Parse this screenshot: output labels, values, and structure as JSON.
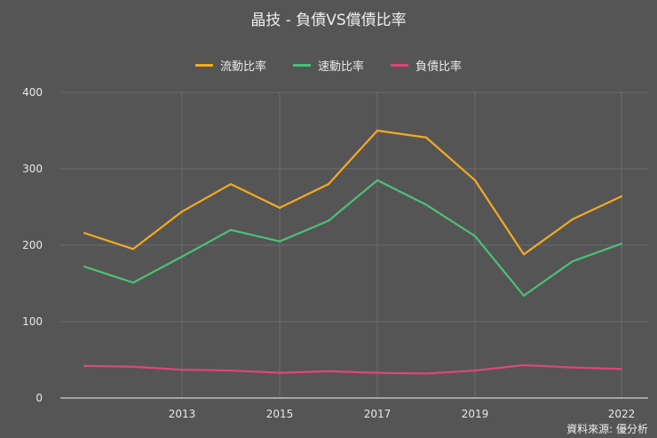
{
  "chart_data": {
    "type": "line",
    "title": "晶技 - 負債VS償債比率",
    "xlabel": "",
    "ylabel": "",
    "x": [
      2011,
      2012,
      2013,
      2014,
      2015,
      2016,
      2017,
      2018,
      2019,
      2020,
      2021,
      2022
    ],
    "x_tick_labels": [
      "2013",
      "2015",
      "2017",
      "2019",
      "2022"
    ],
    "x_tick_values": [
      2013,
      2015,
      2017,
      2019,
      2022
    ],
    "ylim": [
      0,
      400
    ],
    "y_tick_labels": [
      "0",
      "100",
      "200",
      "300",
      "400"
    ],
    "y_tick_values": [
      0,
      100,
      200,
      300,
      400
    ],
    "grid": true,
    "legend_position": "top",
    "series": [
      {
        "name": "流動比率",
        "color": "#f4a922",
        "values": [
          216,
          195,
          244,
          280,
          249,
          280,
          350,
          341,
          285,
          188,
          234,
          264
        ]
      },
      {
        "name": "速動比率",
        "color": "#4cbf7a",
        "values": [
          172,
          151,
          185,
          220,
          205,
          232,
          285,
          253,
          212,
          134,
          179,
          202
        ]
      },
      {
        "name": "負債比率",
        "color": "#e0457b",
        "values": [
          42,
          41,
          37,
          36,
          33,
          35,
          33,
          32,
          36,
          43,
          40,
          38
        ]
      }
    ]
  },
  "source": "資料來源: 優分析"
}
